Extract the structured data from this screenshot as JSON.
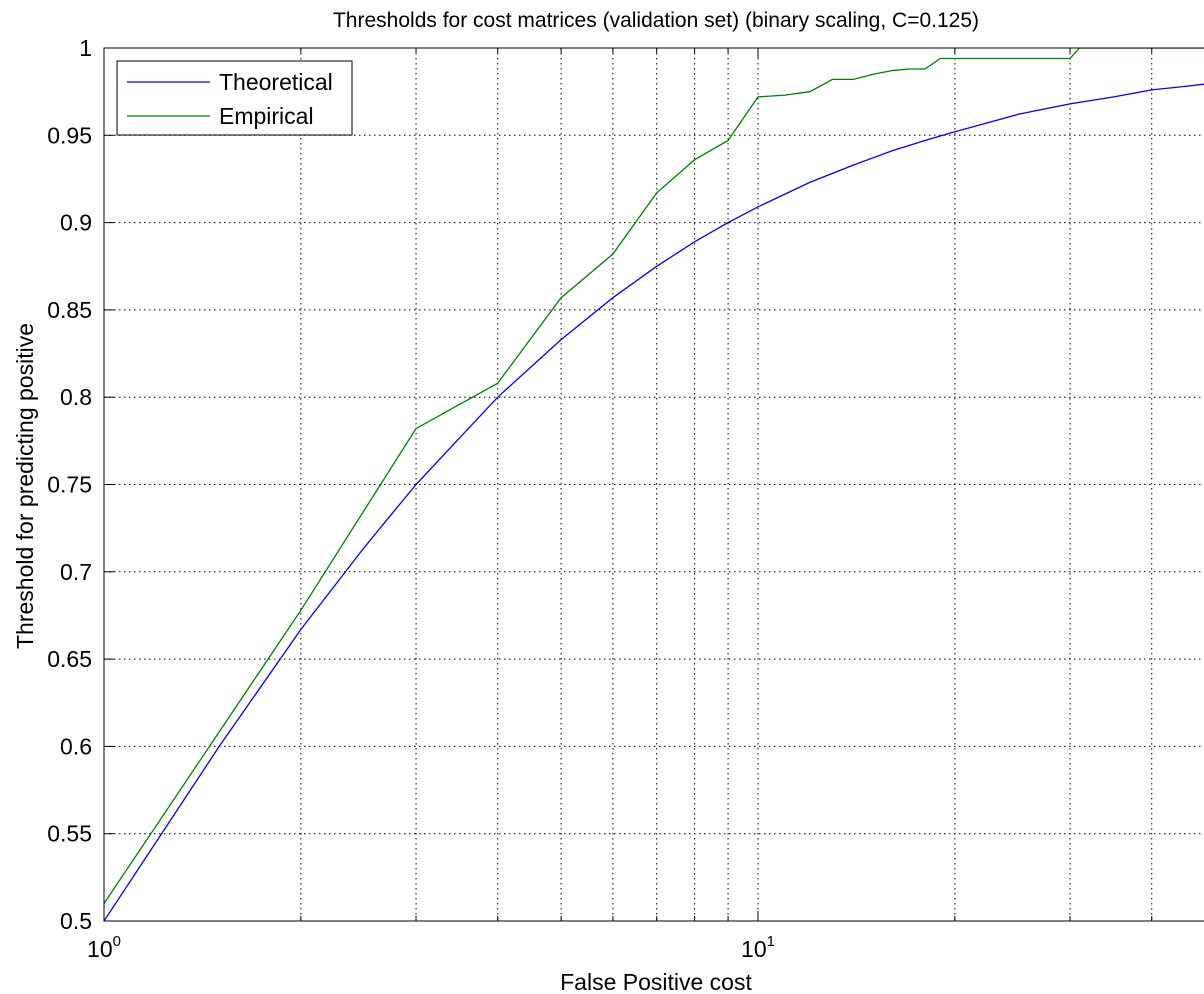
{
  "chart_data": {
    "type": "line",
    "title": "Thresholds for cost matrices (validation set) (binary scaling, C=0.125)",
    "xlabel": "False Positive cost",
    "ylabel": "Threshold for predicting positive",
    "xscale": "log",
    "xlim": [
      1,
      50
    ],
    "ylim": [
      0.5,
      1
    ],
    "grid": true,
    "legend_position": "top-left",
    "x_major_ticks": [
      {
        "value": 1,
        "base": "10",
        "exp": "0"
      },
      {
        "value": 10,
        "base": "10",
        "exp": "1"
      }
    ],
    "x_minor_ticks": [
      2,
      3,
      4,
      5,
      6,
      7,
      8,
      9,
      20,
      30,
      40
    ],
    "y_ticks": [
      0.5,
      0.55,
      0.6,
      0.65,
      0.7,
      0.75,
      0.8,
      0.85,
      0.9,
      0.95,
      1
    ],
    "y_tick_labels": [
      "0.5",
      "0.55",
      "0.6",
      "0.65",
      "0.7",
      "0.75",
      "0.8",
      "0.85",
      "0.9",
      "0.95",
      "1"
    ],
    "series": [
      {
        "name": "Theoretical",
        "color": "#0000ff",
        "x": [
          1,
          1.5,
          2,
          2.5,
          3,
          4,
          5,
          6,
          7,
          8,
          9,
          10,
          12,
          14,
          16,
          18,
          20,
          25,
          30,
          35,
          40,
          45,
          50
        ],
        "y": [
          0.5,
          0.6,
          0.667,
          0.714,
          0.75,
          0.8,
          0.833,
          0.857,
          0.875,
          0.889,
          0.9,
          0.909,
          0.923,
          0.933,
          0.941,
          0.947,
          0.952,
          0.962,
          0.968,
          0.972,
          0.976,
          0.978,
          0.98
        ]
      },
      {
        "name": "Empirical",
        "color": "#008000",
        "x": [
          1,
          2,
          3,
          4,
          5,
          6,
          7,
          8,
          9,
          10,
          11,
          12,
          13,
          14,
          15,
          16,
          17,
          18,
          19,
          20,
          25,
          30,
          31,
          50
        ],
        "y": [
          0.51,
          0.678,
          0.782,
          0.808,
          0.857,
          0.882,
          0.917,
          0.936,
          0.947,
          0.972,
          0.973,
          0.975,
          0.982,
          0.982,
          0.985,
          0.987,
          0.988,
          0.988,
          0.994,
          0.994,
          0.994,
          0.994,
          1,
          1
        ]
      }
    ]
  }
}
